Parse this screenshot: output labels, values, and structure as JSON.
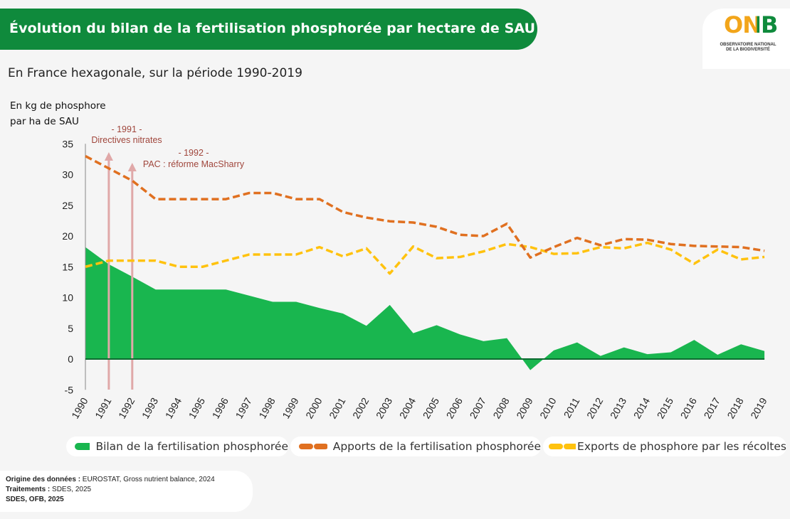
{
  "header": {
    "title": "Évolution du bilan de la fertilisation phosphorée par hectare de SAU",
    "subtitle": "En France hexagonale, sur la période 1990-2019",
    "unit_line1": "En kg de phosphore",
    "unit_line2": "par ha de SAU"
  },
  "logo": {
    "text": "ONB",
    "sub_line1": "OBSERVATOIRE NATIONAL",
    "sub_line2": "DE LA BIODIVERSITÉ",
    "colors": {
      "O": "#f2a51a",
      "N": "#f2a51a",
      "B": "#0f8a3c"
    }
  },
  "legend": {
    "bilan": "Bilan de la fertilisation phosphorée",
    "apports": "Apports de la fertilisation phosphorée",
    "exports": "Exports de phosphore par les récoltes"
  },
  "source": {
    "line1_bold": "Origine des données :",
    "line1_rest": " EUROSTAT, Gross nutrient balance, 2024",
    "line2_bold": "Traitements :",
    "line2_rest": " SDES, 2025",
    "line3": "SDES, OFB, 2025"
  },
  "colors": {
    "bilan": "#19b64f",
    "apports": "#e07020",
    "exports": "#ffc20e",
    "arrow": "#e0a8a8",
    "annotation": "#a0463c",
    "title_bar": "#0f8a3c"
  },
  "chart_data": {
    "type": "area",
    "x": [
      1990,
      1991,
      1992,
      1993,
      1994,
      1995,
      1996,
      1997,
      1998,
      1999,
      2000,
      2001,
      2002,
      2003,
      2004,
      2005,
      2006,
      2007,
      2008,
      2009,
      2010,
      2011,
      2012,
      2013,
      2014,
      2015,
      2016,
      2017,
      2018,
      2019
    ],
    "ylim": [
      -5,
      35
    ],
    "yticks": [
      -5,
      0,
      5,
      10,
      15,
      20,
      25,
      30,
      35
    ],
    "series": [
      {
        "name": "Bilan de la fertilisation phosphorée",
        "type": "area",
        "values": [
          18.2,
          15.4,
          13.4,
          11.3,
          11.3,
          11.3,
          11.3,
          10.3,
          9.3,
          9.3,
          8.3,
          7.4,
          5.4,
          8.8,
          4.2,
          5.5,
          4.0,
          2.9,
          3.4,
          -1.8,
          1.4,
          2.7,
          0.5,
          1.9,
          0.8,
          1.1,
          3.1,
          0.7,
          2.4,
          1.3
        ]
      },
      {
        "name": "Apports de la fertilisation phosphorée",
        "type": "line",
        "dash": true,
        "values": [
          33,
          31,
          29,
          26,
          26,
          26,
          26,
          27,
          27,
          26,
          26,
          23.9,
          23.0,
          22.4,
          22.2,
          21.5,
          20.2,
          20.0,
          22.0,
          16.5,
          18.2,
          19.7,
          18.5,
          19.5,
          19.4,
          18.7,
          18.4,
          18.3,
          18.2,
          17.6
        ]
      },
      {
        "name": "Exports de phosphore par les récoltes",
        "type": "line",
        "dash": true,
        "values": [
          15,
          16,
          16,
          16,
          15,
          15,
          16,
          17,
          17,
          17,
          18.2,
          16.7,
          18,
          13.9,
          18.3,
          16.4,
          16.6,
          17.5,
          18.7,
          18.2,
          17.1,
          17.2,
          18.2,
          18,
          18.9,
          17.8,
          15.5,
          17.8,
          16.2,
          16.6
        ]
      }
    ],
    "annotations": [
      {
        "year": 1991,
        "label_line1": "- 1991 -",
        "label_line2": "Directives nitrates"
      },
      {
        "year": 1992,
        "label_line1": "- 1992 -",
        "label_line2": "PAC : réforme MacSharry"
      }
    ]
  }
}
